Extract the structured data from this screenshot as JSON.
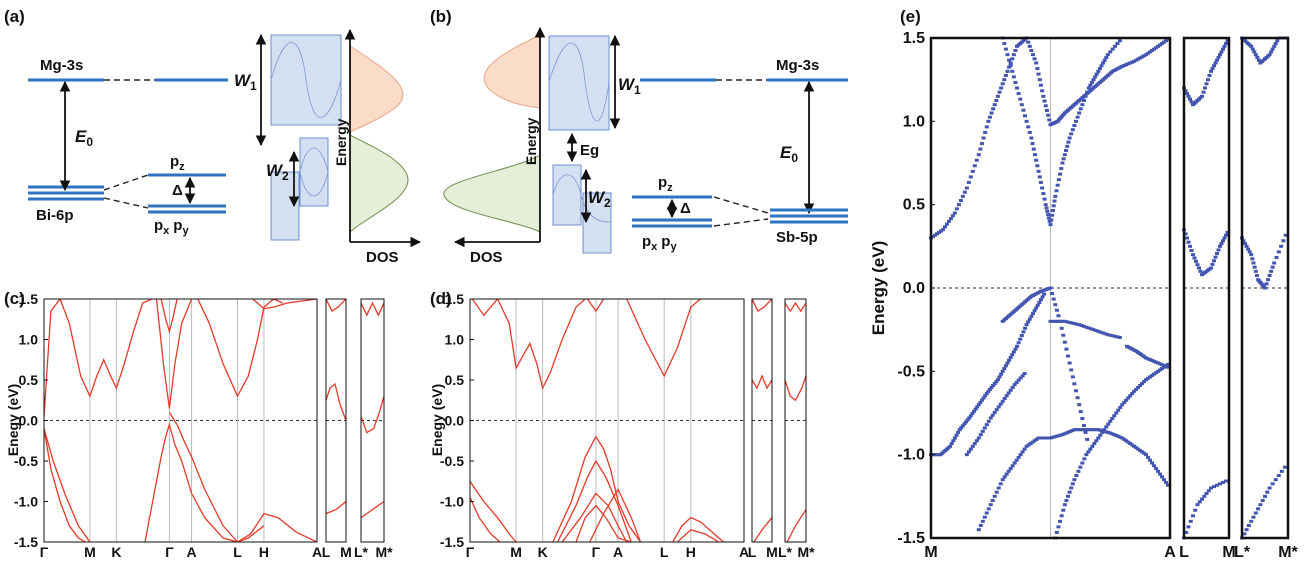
{
  "panel_labels": {
    "a": "(a)",
    "b": "(b)",
    "c": "(c)",
    "d": "(d)",
    "e": "(e)"
  },
  "schematic_a": {
    "top_level": "Mg-3s",
    "bottom_level": "Bi-6p",
    "gap_symbol": "E",
    "gap_sub": "0",
    "pz_main": "p",
    "pz_sub": "z",
    "pxpy_main1": "p",
    "pxpy_sub1": "x",
    "pxpy_main2": "p",
    "pxpy_sub2": "y",
    "delta": "Δ",
    "w1_main": "W",
    "w1_sub": "1",
    "w2_main": "W",
    "w2_sub": "2",
    "energy_axis": "Energy",
    "dos_axis": "DOS"
  },
  "schematic_b": {
    "top_level": "Mg-3s",
    "bottom_level": "Sb-5p",
    "gap_symbol": "E",
    "gap_sub": "0",
    "eg": "Eg",
    "pz_main": "p",
    "pz_sub": "z",
    "pxpy_main1": "p",
    "pxpy_sub1": "x",
    "pxpy_main2": "p",
    "pxpy_sub2": "y",
    "delta": "Δ",
    "w1_main": "W",
    "w1_sub": "1",
    "w2_main": "W",
    "w2_sub": "2",
    "energy_axis": "Energy",
    "dos_axis": "DOS"
  },
  "colors": {
    "band": "#e53a2a",
    "unfold": "#4355b0",
    "level": "#2d73c2",
    "cb_fill": "#fbdcc8",
    "vb_fill": "#e5efd8"
  },
  "chart_data": [
    {
      "panel": "(c)",
      "type": "line",
      "ylabel": "Enegy (eV)",
      "ylim": [
        -1.5,
        1.5
      ],
      "yticks": [
        "1.5",
        "1.0",
        "0.5",
        "0.0",
        "-0.5",
        "-1.0",
        "-1.5"
      ],
      "kpoints": [
        "Γ",
        "M",
        "K",
        "Γ",
        "A",
        "L",
        "H",
        "A",
        "L",
        "M",
        "L*",
        "M*"
      ],
      "fermi_level": 0.0,
      "main_x": [
        0,
        1,
        1.577,
        2.732,
        3.214,
        4.214,
        4.791,
        5.946
      ],
      "main_series": [
        {
          "x": [
            0,
            0.15,
            0.35,
            0.55,
            0.8,
            1.0,
            1.15,
            1.3,
            1.45,
            1.577,
            1.75,
            1.95,
            2.15,
            2.35
          ],
          "y": [
            0.05,
            1.35,
            1.5,
            1.2,
            0.55,
            0.3,
            0.55,
            0.75,
            0.55,
            0.4,
            0.7,
            1.1,
            1.45,
            1.5
          ]
        },
        {
          "x": [
            0,
            0.2,
            0.45,
            0.75,
            1.0
          ],
          "y": [
            -0.1,
            -0.5,
            -0.9,
            -1.3,
            -1.5
          ]
        },
        {
          "x": [
            0,
            0.15,
            0.35,
            0.55,
            0.75,
            0.9
          ],
          "y": [
            -0.1,
            -0.6,
            -1.0,
            -1.3,
            -1.45,
            -1.5
          ]
        },
        {
          "x": [
            2.2,
            2.4,
            2.55,
            2.65,
            2.732,
            2.85,
            3.0,
            3.214,
            3.5,
            3.9,
            4.214,
            4.45,
            4.791
          ],
          "y": [
            -1.5,
            -0.9,
            -0.45,
            -0.2,
            -0.05,
            -0.3,
            -0.5,
            -0.9,
            -1.2,
            -1.45,
            -1.5,
            -1.45,
            -1.3
          ]
        },
        {
          "x": [
            2.732,
            2.9,
            3.05,
            3.214,
            3.5,
            3.9,
            4.214,
            4.5,
            4.791,
            5.1,
            5.5,
            5.946
          ],
          "y": [
            0.1,
            -0.05,
            -0.25,
            -0.45,
            -0.85,
            -1.3,
            -1.5,
            -1.4,
            -1.15,
            -1.2,
            -1.38,
            -1.5
          ]
        },
        {
          "x": [
            2.45,
            2.6,
            2.732,
            2.85,
            3.0,
            3.214
          ],
          "y": [
            1.5,
            0.7,
            0.15,
            0.7,
            1.2,
            1.5
          ]
        },
        {
          "x": [
            2.55,
            2.65,
            2.732,
            2.8,
            2.9
          ],
          "y": [
            1.5,
            1.25,
            1.1,
            1.25,
            1.5
          ]
        },
        {
          "x": [
            3.35,
            3.6,
            3.9,
            4.214,
            4.45,
            4.65,
            4.791,
            5.0,
            5.2
          ],
          "y": [
            1.5,
            1.2,
            0.7,
            0.3,
            0.55,
            1.0,
            1.4,
            1.5,
            1.45
          ]
        },
        {
          "x": [
            4.55,
            4.791,
            5.0,
            5.3,
            5.946
          ],
          "y": [
            1.5,
            1.38,
            1.4,
            1.45,
            1.5
          ]
        }
      ],
      "side1_series": [
        {
          "x": [
            0,
            0.3,
            0.6,
            1.0
          ],
          "y": [
            1.5,
            1.35,
            1.4,
            1.5
          ]
        },
        {
          "x": [
            0,
            0.2,
            0.45,
            0.7,
            1.0
          ],
          "y": [
            0.25,
            0.4,
            0.45,
            0.2,
            0.0
          ]
        },
        {
          "x": [
            0,
            0.5,
            1.0
          ],
          "y": [
            -1.15,
            -1.1,
            -1.0
          ]
        }
      ],
      "side2_series": [
        {
          "x": [
            0,
            0.25,
            0.5,
            0.75,
            1.0
          ],
          "y": [
            1.45,
            1.3,
            1.45,
            1.3,
            1.45
          ]
        },
        {
          "x": [
            0,
            0.25,
            0.55,
            0.8,
            1.0
          ],
          "y": [
            0.05,
            -0.15,
            -0.1,
            0.1,
            0.3
          ]
        },
        {
          "x": [
            0,
            0.5,
            1.0
          ],
          "y": [
            -1.2,
            -1.1,
            -1.0
          ]
        }
      ]
    },
    {
      "panel": "(d)",
      "type": "line",
      "ylabel": "Enegy (eV)",
      "ylim": [
        -1.5,
        1.5
      ],
      "yticks": [
        "1.5",
        "1.0",
        "0.5",
        "0.0",
        "-0.5",
        "-1.0",
        "-1.5"
      ],
      "kpoints": [
        "Γ",
        "M",
        "K",
        "Γ",
        "A",
        "L",
        "H",
        "A",
        "L",
        "M",
        "L*",
        "M*"
      ],
      "fermi_level": 0.0,
      "main_x": [
        0,
        1,
        1.577,
        2.732,
        3.214,
        4.214,
        4.791,
        5.946
      ],
      "main_series": [
        {
          "x": [
            0.05,
            0.3,
            0.6,
            0.85,
            1.0,
            1.15,
            1.3,
            1.45,
            1.577,
            1.75,
            2.0,
            2.3,
            2.5
          ],
          "y": [
            1.5,
            1.3,
            1.5,
            1.2,
            0.65,
            0.8,
            0.95,
            0.7,
            0.4,
            0.6,
            1.0,
            1.4,
            1.5
          ]
        },
        {
          "x": [
            2.55,
            2.732,
            2.9
          ],
          "y": [
            1.5,
            1.35,
            1.5
          ]
        },
        {
          "x": [
            3.4,
            3.8,
            4.214,
            4.5,
            4.791,
            5.0
          ],
          "y": [
            1.5,
            1.0,
            0.55,
            0.9,
            1.4,
            1.5
          ]
        },
        {
          "x": [
            1.8,
            2.2,
            2.5,
            2.732,
            2.9,
            3.05,
            3.214,
            3.45,
            3.7
          ],
          "y": [
            -1.5,
            -1.0,
            -0.45,
            -0.2,
            -0.35,
            -0.6,
            -1.0,
            -1.3,
            -1.5
          ]
        },
        {
          "x": [
            1.9,
            2.3,
            2.55,
            2.732,
            2.95,
            3.214,
            3.5
          ],
          "y": [
            -1.5,
            -1.05,
            -0.7,
            -0.5,
            -0.7,
            -1.05,
            -1.5
          ]
        },
        {
          "x": [
            2.0,
            2.4,
            2.732,
            3.0,
            3.214,
            3.4
          ],
          "y": [
            -1.5,
            -1.2,
            -0.9,
            -1.05,
            -1.3,
            -1.5
          ]
        },
        {
          "x": [
            2.3,
            2.5,
            2.732,
            2.95,
            3.214,
            3.5
          ],
          "y": [
            -1.5,
            -1.2,
            -1.05,
            -1.2,
            -1.45,
            -1.5
          ]
        },
        {
          "x": [
            2.6,
            2.9,
            3.214,
            3.5,
            3.7
          ],
          "y": [
            -1.5,
            -1.15,
            -0.85,
            -1.2,
            -1.5
          ]
        },
        {
          "x": [
            0,
            0.3,
            0.6,
            0.85,
            1.0
          ],
          "y": [
            -0.75,
            -1.0,
            -1.2,
            -1.4,
            -1.5
          ]
        },
        {
          "x": [
            0,
            0.2,
            0.45,
            0.65
          ],
          "y": [
            -0.95,
            -1.2,
            -1.4,
            -1.5
          ]
        },
        {
          "x": [
            4.4,
            4.6,
            4.791,
            5.0,
            5.3,
            5.5
          ],
          "y": [
            -1.5,
            -1.3,
            -1.2,
            -1.25,
            -1.4,
            -1.5
          ]
        },
        {
          "x": [
            4.5,
            4.791,
            5.1,
            5.4
          ],
          "y": [
            -1.5,
            -1.35,
            -1.4,
            -1.5
          ]
        }
      ],
      "side1_series": [
        {
          "x": [
            0,
            0.3,
            0.6,
            1.0
          ],
          "y": [
            1.5,
            1.35,
            1.4,
            1.5
          ]
        },
        {
          "x": [
            0,
            0.25,
            0.5,
            0.75,
            1.0
          ],
          "y": [
            0.5,
            0.4,
            0.55,
            0.4,
            0.5
          ]
        },
        {
          "x": [
            0.1,
            0.5,
            1.0
          ],
          "y": [
            -1.5,
            -1.35,
            -1.2
          ]
        }
      ],
      "side2_series": [
        {
          "x": [
            0,
            0.25,
            0.5,
            0.75,
            1.0
          ],
          "y": [
            1.45,
            1.35,
            1.45,
            1.35,
            1.45
          ]
        },
        {
          "x": [
            0,
            0.25,
            0.5,
            0.8,
            1.0
          ],
          "y": [
            0.5,
            0.3,
            0.25,
            0.4,
            0.55
          ]
        },
        {
          "x": [
            0.1,
            0.5,
            1.0
          ],
          "y": [
            -1.5,
            -1.3,
            -1.1
          ]
        }
      ]
    },
    {
      "panel": "(e)",
      "type": "scatter",
      "ylabel": "Energy (eV)",
      "ylim": [
        -1.5,
        1.5
      ],
      "yticks": [
        "1.5",
        "1.0",
        "0.5",
        "0.0",
        "-0.5",
        "-1.0",
        "-1.5"
      ],
      "main_kpoints": [
        "M",
        "A"
      ],
      "side1_kpoints": [
        "L",
        "M"
      ],
      "side2_kpoints": [
        "L*",
        "M*"
      ],
      "fermi_level": 0.0,
      "main_series": [
        {
          "x": [
            0,
            0.05,
            0.1,
            0.15,
            0.2,
            0.24,
            0.28,
            0.32,
            0.36,
            0.4,
            0.44,
            0.47,
            0.5
          ],
          "y": [
            0.3,
            0.35,
            0.45,
            0.6,
            0.8,
            1.0,
            1.15,
            1.3,
            1.45,
            1.5,
            1.35,
            1.15,
            0.98
          ]
        },
        {
          "x": [
            0.5,
            0.53,
            0.56,
            0.6,
            0.64,
            0.68,
            0.72,
            0.76,
            0.8,
            0.85,
            0.9,
            0.95,
            1.0
          ],
          "y": [
            0.98,
            1.0,
            1.05,
            1.1,
            1.15,
            1.2,
            1.25,
            1.3,
            1.33,
            1.36,
            1.4,
            1.45,
            1.5
          ]
        },
        {
          "x": [
            0.3,
            0.34,
            0.38,
            0.42,
            0.45,
            0.48,
            0.5
          ],
          "y": [
            1.5,
            1.3,
            1.1,
            0.9,
            0.7,
            0.5,
            0.38
          ]
        },
        {
          "x": [
            0.5,
            0.52,
            0.55,
            0.58,
            0.62,
            0.66,
            0.7,
            0.74,
            0.8
          ],
          "y": [
            0.38,
            0.55,
            0.75,
            0.9,
            1.05,
            1.2,
            1.3,
            1.4,
            1.5
          ]
        },
        {
          "x": [
            0.3,
            0.34,
            0.38,
            0.42,
            0.46,
            0.5,
            0.54,
            0.58,
            0.62,
            0.66
          ],
          "y": [
            -0.2,
            -0.15,
            -0.1,
            -0.05,
            -0.02,
            0.0,
            -0.2,
            -0.45,
            -0.7,
            -0.95
          ]
        },
        {
          "x": [
            0.5,
            0.56,
            0.62,
            0.68,
            0.74,
            0.8
          ],
          "y": [
            -0.2,
            -0.2,
            -0.22,
            -0.25,
            -0.28,
            -0.3
          ]
        },
        {
          "x": [
            0.82,
            0.86,
            0.9,
            0.95,
            1.0
          ],
          "y": [
            -0.35,
            -0.38,
            -0.42,
            -0.45,
            -0.48
          ]
        },
        {
          "x": [
            0.2,
            0.25,
            0.3,
            0.35,
            0.4,
            0.45,
            0.5,
            0.55,
            0.6,
            0.65,
            0.7,
            0.75,
            0.8,
            0.85,
            0.9,
            0.95,
            1.0
          ],
          "y": [
            -1.45,
            -1.3,
            -1.15,
            -1.05,
            -0.95,
            -0.9,
            -0.9,
            -0.88,
            -0.85,
            -0.85,
            -0.85,
            -0.87,
            -0.9,
            -0.95,
            -1.0,
            -1.1,
            -1.2
          ]
        },
        {
          "x": [
            0,
            0.04,
            0.08,
            0.12,
            0.16,
            0.2,
            0.24,
            0.28,
            0.32,
            0.36,
            0.4,
            0.44,
            0.48
          ],
          "y": [
            -1.0,
            -1.0,
            -0.95,
            -0.85,
            -0.78,
            -0.7,
            -0.62,
            -0.55,
            -0.45,
            -0.35,
            -0.22,
            -0.12,
            -0.02
          ]
        },
        {
          "x": [
            0.15,
            0.2,
            0.25,
            0.3,
            0.35,
            0.4
          ],
          "y": [
            -1.0,
            -0.9,
            -0.78,
            -0.68,
            -0.58,
            -0.5
          ]
        },
        {
          "x": [
            0.52,
            0.56,
            0.6,
            0.65,
            0.7,
            0.75,
            0.8,
            0.85,
            0.9,
            0.95,
            1.0
          ],
          "y": [
            -1.5,
            -1.3,
            -1.15,
            -1.0,
            -0.9,
            -0.8,
            -0.7,
            -0.62,
            -0.55,
            -0.5,
            -0.45
          ]
        }
      ],
      "side1_series": [
        {
          "x": [
            0,
            0.2,
            0.4,
            0.6,
            0.8,
            1.0
          ],
          "y": [
            1.2,
            1.1,
            1.15,
            1.3,
            1.4,
            1.5
          ]
        },
        {
          "x": [
            0,
            0.2,
            0.4,
            0.6,
            0.8,
            1.0
          ],
          "y": [
            0.35,
            0.2,
            0.08,
            0.12,
            0.25,
            0.35
          ]
        },
        {
          "x": [
            0,
            0.3,
            0.6,
            1.0
          ],
          "y": [
            -1.5,
            -1.3,
            -1.2,
            -1.15
          ]
        }
      ],
      "side2_series": [
        {
          "x": [
            0,
            0.2,
            0.4,
            0.6,
            0.8,
            1.0
          ],
          "y": [
            1.5,
            1.45,
            1.35,
            1.4,
            1.5,
            1.5
          ]
        },
        {
          "x": [
            0,
            0.2,
            0.35,
            0.5,
            0.7,
            1.0
          ],
          "y": [
            0.3,
            0.2,
            0.05,
            0.0,
            0.15,
            0.35
          ]
        },
        {
          "x": [
            0,
            0.3,
            0.6,
            1.0
          ],
          "y": [
            -1.5,
            -1.35,
            -1.2,
            -1.05
          ]
        }
      ]
    }
  ]
}
